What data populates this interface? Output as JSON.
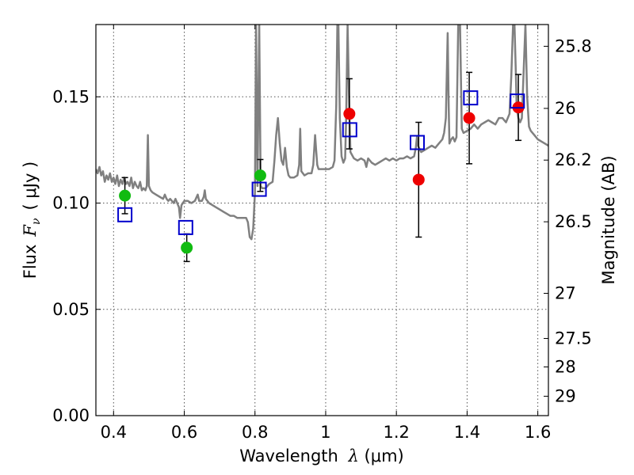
{
  "chart_data": {
    "type": "scatter",
    "title": "",
    "xlabel": "Wavelength",
    "xlabel_symbol": "λ",
    "xlabel_unit": "(μm)",
    "ylabel": "Flux",
    "ylabel_symbol": "F",
    "ylabel_subscript": "ν",
    "ylabel_unit": "( μJy )",
    "y2label": "Magnitude (AB)",
    "xlim": [
      0.35,
      1.63
    ],
    "ylim": [
      0.0,
      0.184
    ],
    "grid": true,
    "x_ticks": [
      0.4,
      0.6,
      0.8,
      1.0,
      1.2,
      1.4,
      1.6
    ],
    "x_tick_labels": [
      "0.4",
      "0.6",
      "0.8",
      "1",
      "1.2",
      "1.4",
      "1.6"
    ],
    "y_ticks": [
      0.0,
      0.05,
      0.1,
      0.15
    ],
    "y_tick_labels": [
      "0.00",
      "0.05",
      "0.10",
      "0.15"
    ],
    "mag_ticks": [
      25.8,
      26,
      26.2,
      26.5,
      27,
      27.5,
      28,
      29
    ],
    "mag_tick_labels": [
      "25.8",
      "26",
      "26.2",
      "26.5",
      "27",
      "27.5",
      "28",
      "29"
    ],
    "colors": {
      "model": "#808080",
      "green": "#11bb11",
      "red": "#ee0000",
      "box": "#0000cc",
      "errorbar": "#000000",
      "grid": "#555555"
    },
    "series": [
      {
        "name": "model spectrum",
        "kind": "line",
        "points": [
          [
            0.35,
            0.116
          ],
          [
            0.355,
            0.114
          ],
          [
            0.36,
            0.117
          ],
          [
            0.365,
            0.113
          ],
          [
            0.37,
            0.115
          ],
          [
            0.375,
            0.11
          ],
          [
            0.38,
            0.113
          ],
          [
            0.385,
            0.111
          ],
          [
            0.39,
            0.114
          ],
          [
            0.395,
            0.11
          ],
          [
            0.4,
            0.112
          ],
          [
            0.405,
            0.109
          ],
          [
            0.41,
            0.113
          ],
          [
            0.415,
            0.108
          ],
          [
            0.42,
            0.111
          ],
          [
            0.425,
            0.109
          ],
          [
            0.43,
            0.112
          ],
          [
            0.435,
            0.109
          ],
          [
            0.44,
            0.11
          ],
          [
            0.445,
            0.108
          ],
          [
            0.45,
            0.112
          ],
          [
            0.455,
            0.107
          ],
          [
            0.46,
            0.11
          ],
          [
            0.465,
            0.108
          ],
          [
            0.47,
            0.107
          ],
          [
            0.475,
            0.11
          ],
          [
            0.48,
            0.106
          ],
          [
            0.485,
            0.107
          ],
          [
            0.49,
            0.106
          ],
          [
            0.494,
            0.108
          ],
          [
            0.497,
            0.132
          ],
          [
            0.5,
            0.108
          ],
          [
            0.505,
            0.106
          ],
          [
            0.51,
            0.105
          ],
          [
            0.52,
            0.104
          ],
          [
            0.53,
            0.103
          ],
          [
            0.54,
            0.102
          ],
          [
            0.545,
            0.104
          ],
          [
            0.55,
            0.102
          ],
          [
            0.555,
            0.101
          ],
          [
            0.56,
            0.102
          ],
          [
            0.565,
            0.101
          ],
          [
            0.57,
            0.1
          ],
          [
            0.575,
            0.102
          ],
          [
            0.58,
            0.1
          ],
          [
            0.585,
            0.098
          ],
          [
            0.588,
            0.093
          ],
          [
            0.592,
            0.099
          ],
          [
            0.6,
            0.101
          ],
          [
            0.61,
            0.101
          ],
          [
            0.62,
            0.1
          ],
          [
            0.63,
            0.101
          ],
          [
            0.638,
            0.104
          ],
          [
            0.642,
            0.101
          ],
          [
            0.65,
            0.101
          ],
          [
            0.655,
            0.103
          ],
          [
            0.658,
            0.106
          ],
          [
            0.661,
            0.102
          ],
          [
            0.67,
            0.1
          ],
          [
            0.68,
            0.099
          ],
          [
            0.69,
            0.098
          ],
          [
            0.7,
            0.097
          ],
          [
            0.71,
            0.096
          ],
          [
            0.72,
            0.095
          ],
          [
            0.73,
            0.094
          ],
          [
            0.74,
            0.094
          ],
          [
            0.75,
            0.093
          ],
          [
            0.76,
            0.093
          ],
          [
            0.77,
            0.093
          ],
          [
            0.775,
            0.093
          ],
          [
            0.78,
            0.091
          ],
          [
            0.785,
            0.084
          ],
          [
            0.79,
            0.083
          ],
          [
            0.795,
            0.088
          ],
          [
            0.8,
            0.105
          ],
          [
            0.803,
            0.184
          ],
          [
            0.807,
            0.108
          ],
          [
            0.812,
            0.184
          ],
          [
            0.816,
            0.108
          ],
          [
            0.82,
            0.107
          ],
          [
            0.83,
            0.107
          ],
          [
            0.84,
            0.109
          ],
          [
            0.85,
            0.11
          ],
          [
            0.855,
            0.12
          ],
          [
            0.86,
            0.132
          ],
          [
            0.865,
            0.14
          ],
          [
            0.87,
            0.128
          ],
          [
            0.875,
            0.12
          ],
          [
            0.88,
            0.118
          ],
          [
            0.885,
            0.126
          ],
          [
            0.89,
            0.117
          ],
          [
            0.895,
            0.113
          ],
          [
            0.9,
            0.112
          ],
          [
            0.91,
            0.112
          ],
          [
            0.92,
            0.113
          ],
          [
            0.925,
            0.118
          ],
          [
            0.928,
            0.135
          ],
          [
            0.931,
            0.115
          ],
          [
            0.94,
            0.113
          ],
          [
            0.95,
            0.114
          ],
          [
            0.96,
            0.114
          ],
          [
            0.965,
            0.118
          ],
          [
            0.97,
            0.132
          ],
          [
            0.973,
            0.125
          ],
          [
            0.976,
            0.118
          ],
          [
            0.98,
            0.116
          ],
          [
            0.99,
            0.116
          ],
          [
            1.0,
            0.116
          ],
          [
            1.01,
            0.116
          ],
          [
            1.02,
            0.117
          ],
          [
            1.025,
            0.12
          ],
          [
            1.03,
            0.146
          ],
          [
            1.033,
            0.184
          ],
          [
            1.036,
            0.184
          ],
          [
            1.04,
            0.14
          ],
          [
            1.045,
            0.122
          ],
          [
            1.05,
            0.119
          ],
          [
            1.055,
            0.121
          ],
          [
            1.058,
            0.14
          ],
          [
            1.062,
            0.184
          ],
          [
            1.066,
            0.15
          ],
          [
            1.07,
            0.124
          ],
          [
            1.08,
            0.121
          ],
          [
            1.09,
            0.12
          ],
          [
            1.1,
            0.121
          ],
          [
            1.11,
            0.12
          ],
          [
            1.115,
            0.117
          ],
          [
            1.12,
            0.121
          ],
          [
            1.13,
            0.119
          ],
          [
            1.14,
            0.118
          ],
          [
            1.15,
            0.119
          ],
          [
            1.16,
            0.12
          ],
          [
            1.17,
            0.121
          ],
          [
            1.18,
            0.12
          ],
          [
            1.19,
            0.121
          ],
          [
            1.2,
            0.12
          ],
          [
            1.21,
            0.121
          ],
          [
            1.22,
            0.121
          ],
          [
            1.23,
            0.122
          ],
          [
            1.24,
            0.121
          ],
          [
            1.25,
            0.122
          ],
          [
            1.255,
            0.126
          ],
          [
            1.258,
            0.131
          ],
          [
            1.261,
            0.127
          ],
          [
            1.27,
            0.124
          ],
          [
            1.28,
            0.125
          ],
          [
            1.29,
            0.126
          ],
          [
            1.3,
            0.127
          ],
          [
            1.31,
            0.126
          ],
          [
            1.32,
            0.128
          ],
          [
            1.33,
            0.13
          ],
          [
            1.335,
            0.133
          ],
          [
            1.34,
            0.14
          ],
          [
            1.345,
            0.18
          ],
          [
            1.348,
            0.145
          ],
          [
            1.35,
            0.128
          ],
          [
            1.355,
            0.13
          ],
          [
            1.36,
            0.131
          ],
          [
            1.365,
            0.129
          ],
          [
            1.37,
            0.131
          ],
          [
            1.375,
            0.184
          ],
          [
            1.38,
            0.184
          ],
          [
            1.385,
            0.135
          ],
          [
            1.39,
            0.133
          ],
          [
            1.4,
            0.134
          ],
          [
            1.41,
            0.135
          ],
          [
            1.42,
            0.137
          ],
          [
            1.43,
            0.135
          ],
          [
            1.44,
            0.137
          ],
          [
            1.45,
            0.138
          ],
          [
            1.46,
            0.139
          ],
          [
            1.47,
            0.138
          ],
          [
            1.48,
            0.137
          ],
          [
            1.49,
            0.14
          ],
          [
            1.5,
            0.14
          ],
          [
            1.51,
            0.138
          ],
          [
            1.52,
            0.142
          ],
          [
            1.525,
            0.16
          ],
          [
            1.53,
            0.184
          ],
          [
            1.534,
            0.184
          ],
          [
            1.538,
            0.16
          ],
          [
            1.54,
            0.145
          ],
          [
            1.545,
            0.14
          ],
          [
            1.55,
            0.138
          ],
          [
            1.555,
            0.14
          ],
          [
            1.565,
            0.184
          ],
          [
            1.57,
            0.15
          ],
          [
            1.575,
            0.136
          ],
          [
            1.58,
            0.134
          ],
          [
            1.59,
            0.132
          ],
          [
            1.6,
            0.13
          ],
          [
            1.61,
            0.129
          ],
          [
            1.62,
            0.128
          ],
          [
            1.63,
            0.127
          ]
        ]
      },
      {
        "name": "green points",
        "kind": "points",
        "points": [
          {
            "x": 0.432,
            "y": 0.1035,
            "err": 0.0085
          },
          {
            "x": 0.607,
            "y": 0.079,
            "err": 0.0065
          },
          {
            "x": 0.815,
            "y": 0.113,
            "err": 0.0075
          }
        ]
      },
      {
        "name": "red points",
        "kind": "points",
        "points": [
          {
            "x": 1.067,
            "y": 0.142,
            "err": 0.0165
          },
          {
            "x": 1.263,
            "y": 0.111,
            "err": 0.027
          },
          {
            "x": 1.406,
            "y": 0.14,
            "err": 0.0215
          },
          {
            "x": 1.545,
            "y": 0.145,
            "err": 0.0155
          }
        ]
      },
      {
        "name": "model band fluxes",
        "kind": "squares",
        "points": [
          {
            "x": 0.432,
            "y": 0.0945
          },
          {
            "x": 0.604,
            "y": 0.0885
          },
          {
            "x": 0.812,
            "y": 0.1065
          },
          {
            "x": 1.068,
            "y": 0.1345
          },
          {
            "x": 1.259,
            "y": 0.1285
          },
          {
            "x": 1.41,
            "y": 0.1495
          },
          {
            "x": 1.542,
            "y": 0.148
          }
        ]
      }
    ]
  }
}
